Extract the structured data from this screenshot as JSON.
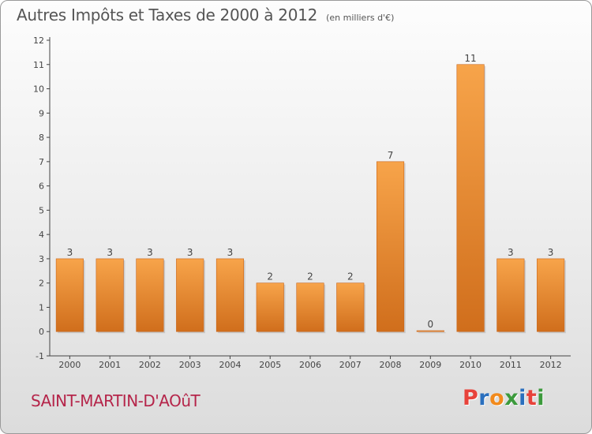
{
  "title": "Autres Impôts et Taxes de 2000 à 2012",
  "unit": "(en milliers d'€)",
  "commune": "SAINT-MARTIN-D'AOûT",
  "brand": "Proxiti",
  "brand_colors": [
    "#e8423a",
    "#2a6fbe",
    "#f28a1c",
    "#3c9a3c",
    "#2a6fbe",
    "#e8423a",
    "#3c9a3c"
  ],
  "colors": {
    "bar": "#f08c2a",
    "bar_dark": "#c9651a",
    "axis": "#444444",
    "grid": "#c8c8c8"
  },
  "chart_data": {
    "type": "bar",
    "categories": [
      "2000",
      "2001",
      "2002",
      "2003",
      "2004",
      "2005",
      "2006",
      "2007",
      "2008",
      "2009",
      "2010",
      "2011",
      "2012"
    ],
    "values": [
      3,
      3,
      3,
      3,
      3,
      2,
      2,
      2,
      7,
      0,
      11,
      3,
      3
    ],
    "ylim": [
      -1,
      12
    ],
    "yticks": [
      "-1",
      "0",
      "1",
      "2",
      "3",
      "4",
      "5",
      "6",
      "7",
      "8",
      "9",
      "10",
      "11",
      "12"
    ],
    "grid": false,
    "xlabel": "",
    "ylabel": ""
  }
}
